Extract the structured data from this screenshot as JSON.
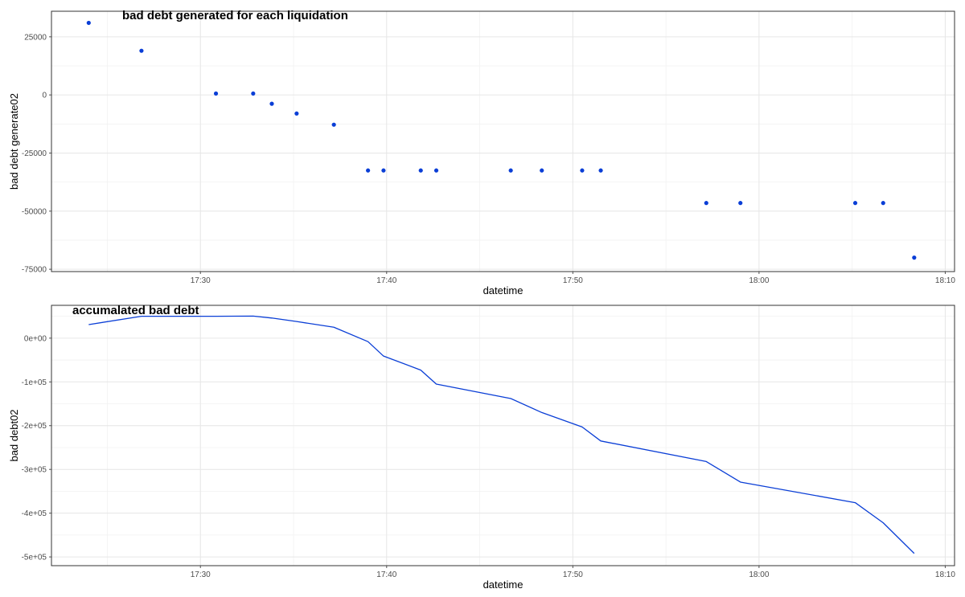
{
  "chart_data": [
    {
      "type": "scatter",
      "title": "bad debt generated for each liquidation",
      "xlabel": "datetime",
      "ylabel": "bad debt generate02",
      "xlim": [
        "17:22:00",
        "18:10:30"
      ],
      "ylim": [
        -76000,
        36000
      ],
      "xticks": [
        "17:30",
        "17:40",
        "17:50",
        "18:00",
        "18:10"
      ],
      "yticks": [
        25000,
        0,
        -25000,
        -50000,
        -75000
      ],
      "ytick_labels": [
        "25000",
        "0",
        "-25000",
        "-50000",
        "-75000"
      ],
      "color": "#0a3ed6",
      "grid": true,
      "x": [
        "17:24:00",
        "17:26:50",
        "17:30:50",
        "17:32:50",
        "17:33:50",
        "17:35:10",
        "17:37:10",
        "17:39:00",
        "17:39:50",
        "17:41:50",
        "17:42:40",
        "17:46:40",
        "17:48:20",
        "17:50:30",
        "17:51:30",
        "17:57:10",
        "17:59:00",
        "18:05:10",
        "18:06:40",
        "18:08:20"
      ],
      "y": [
        31000,
        19000,
        600,
        600,
        -3800,
        -8000,
        -12800,
        -32500,
        -32500,
        -32500,
        -32500,
        -32500,
        -32500,
        -32500,
        -32500,
        -46500,
        -46500,
        -46500,
        -46500,
        -70000
      ]
    },
    {
      "type": "line",
      "title": "accumalated bad debt",
      "xlabel": "datetime",
      "ylabel": "bad debt02",
      "xlim": [
        "17:22:00",
        "18:10:30"
      ],
      "ylim": [
        -520000,
        75000
      ],
      "xticks": [
        "17:30",
        "17:40",
        "17:50",
        "18:00",
        "18:10"
      ],
      "yticks": [
        0,
        -100000,
        -200000,
        -300000,
        -400000,
        -500000
      ],
      "ytick_labels": [
        "0e+00",
        "-1e+05",
        "-2e+05",
        "-3e+05",
        "-4e+05",
        "-5e+05"
      ],
      "color": "#0a3ed6",
      "grid": true,
      "x": [
        "17:24:00",
        "17:26:50",
        "17:30:50",
        "17:32:50",
        "17:33:50",
        "17:35:10",
        "17:37:10",
        "17:39:00",
        "17:39:50",
        "17:41:50",
        "17:42:40",
        "17:46:40",
        "17:48:20",
        "17:50:30",
        "17:51:30",
        "17:57:10",
        "17:59:00",
        "18:05:10",
        "18:06:40",
        "18:08:20"
      ],
      "y": [
        31000,
        50000,
        50000,
        50500,
        46000,
        38000,
        25000,
        -8000,
        -41000,
        -73000,
        -105000,
        -138000,
        -170000,
        -203000,
        -235000,
        -282000,
        -329000,
        -376000,
        -422000,
        -492000
      ]
    }
  ]
}
